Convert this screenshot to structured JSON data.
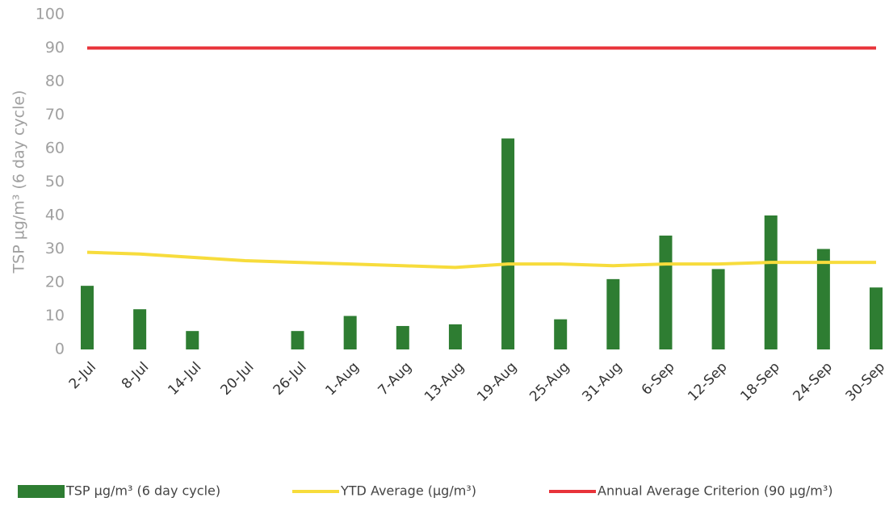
{
  "chart_data": {
    "type": "bar",
    "y_label": "TSP µg/m³ (6 day cycle)",
    "categories": [
      "2-Jul",
      "8-Jul",
      "14-Jul",
      "20-Jul",
      "26-Jul",
      "1-Aug",
      "7-Aug",
      "13-Aug",
      "19-Aug",
      "25-Aug",
      "31-Aug",
      "6-Sep",
      "12-Sep",
      "18-Sep",
      "24-Sep",
      "30-Sep"
    ],
    "series": [
      {
        "name": "TSP µg/m³ (6 day cycle)",
        "type": "bar",
        "color": "#2e7d32",
        "values": [
          19,
          12,
          5.5,
          null,
          5.5,
          10,
          7,
          7.5,
          63,
          9,
          21,
          34,
          24,
          40,
          30,
          18.5
        ]
      },
      {
        "name": "YTD  Average (µg/m³)",
        "type": "line",
        "color": "#f7dc3c",
        "values": [
          29,
          28.5,
          27.5,
          26.5,
          26,
          25.5,
          25,
          24.5,
          25.5,
          25.5,
          25,
          25.5,
          25.5,
          26,
          26,
          26
        ]
      },
      {
        "name": "Annual Average Criterion (90 µg/m³)",
        "type": "line",
        "color": "#e8333a",
        "values": [
          90,
          90,
          90,
          90,
          90,
          90,
          90,
          90,
          90,
          90,
          90,
          90,
          90,
          90,
          90,
          90
        ]
      }
    ],
    "ylim": [
      0,
      100
    ],
    "yticks": [
      0,
      10,
      20,
      30,
      40,
      50,
      60,
      70,
      80,
      90,
      100
    ]
  }
}
